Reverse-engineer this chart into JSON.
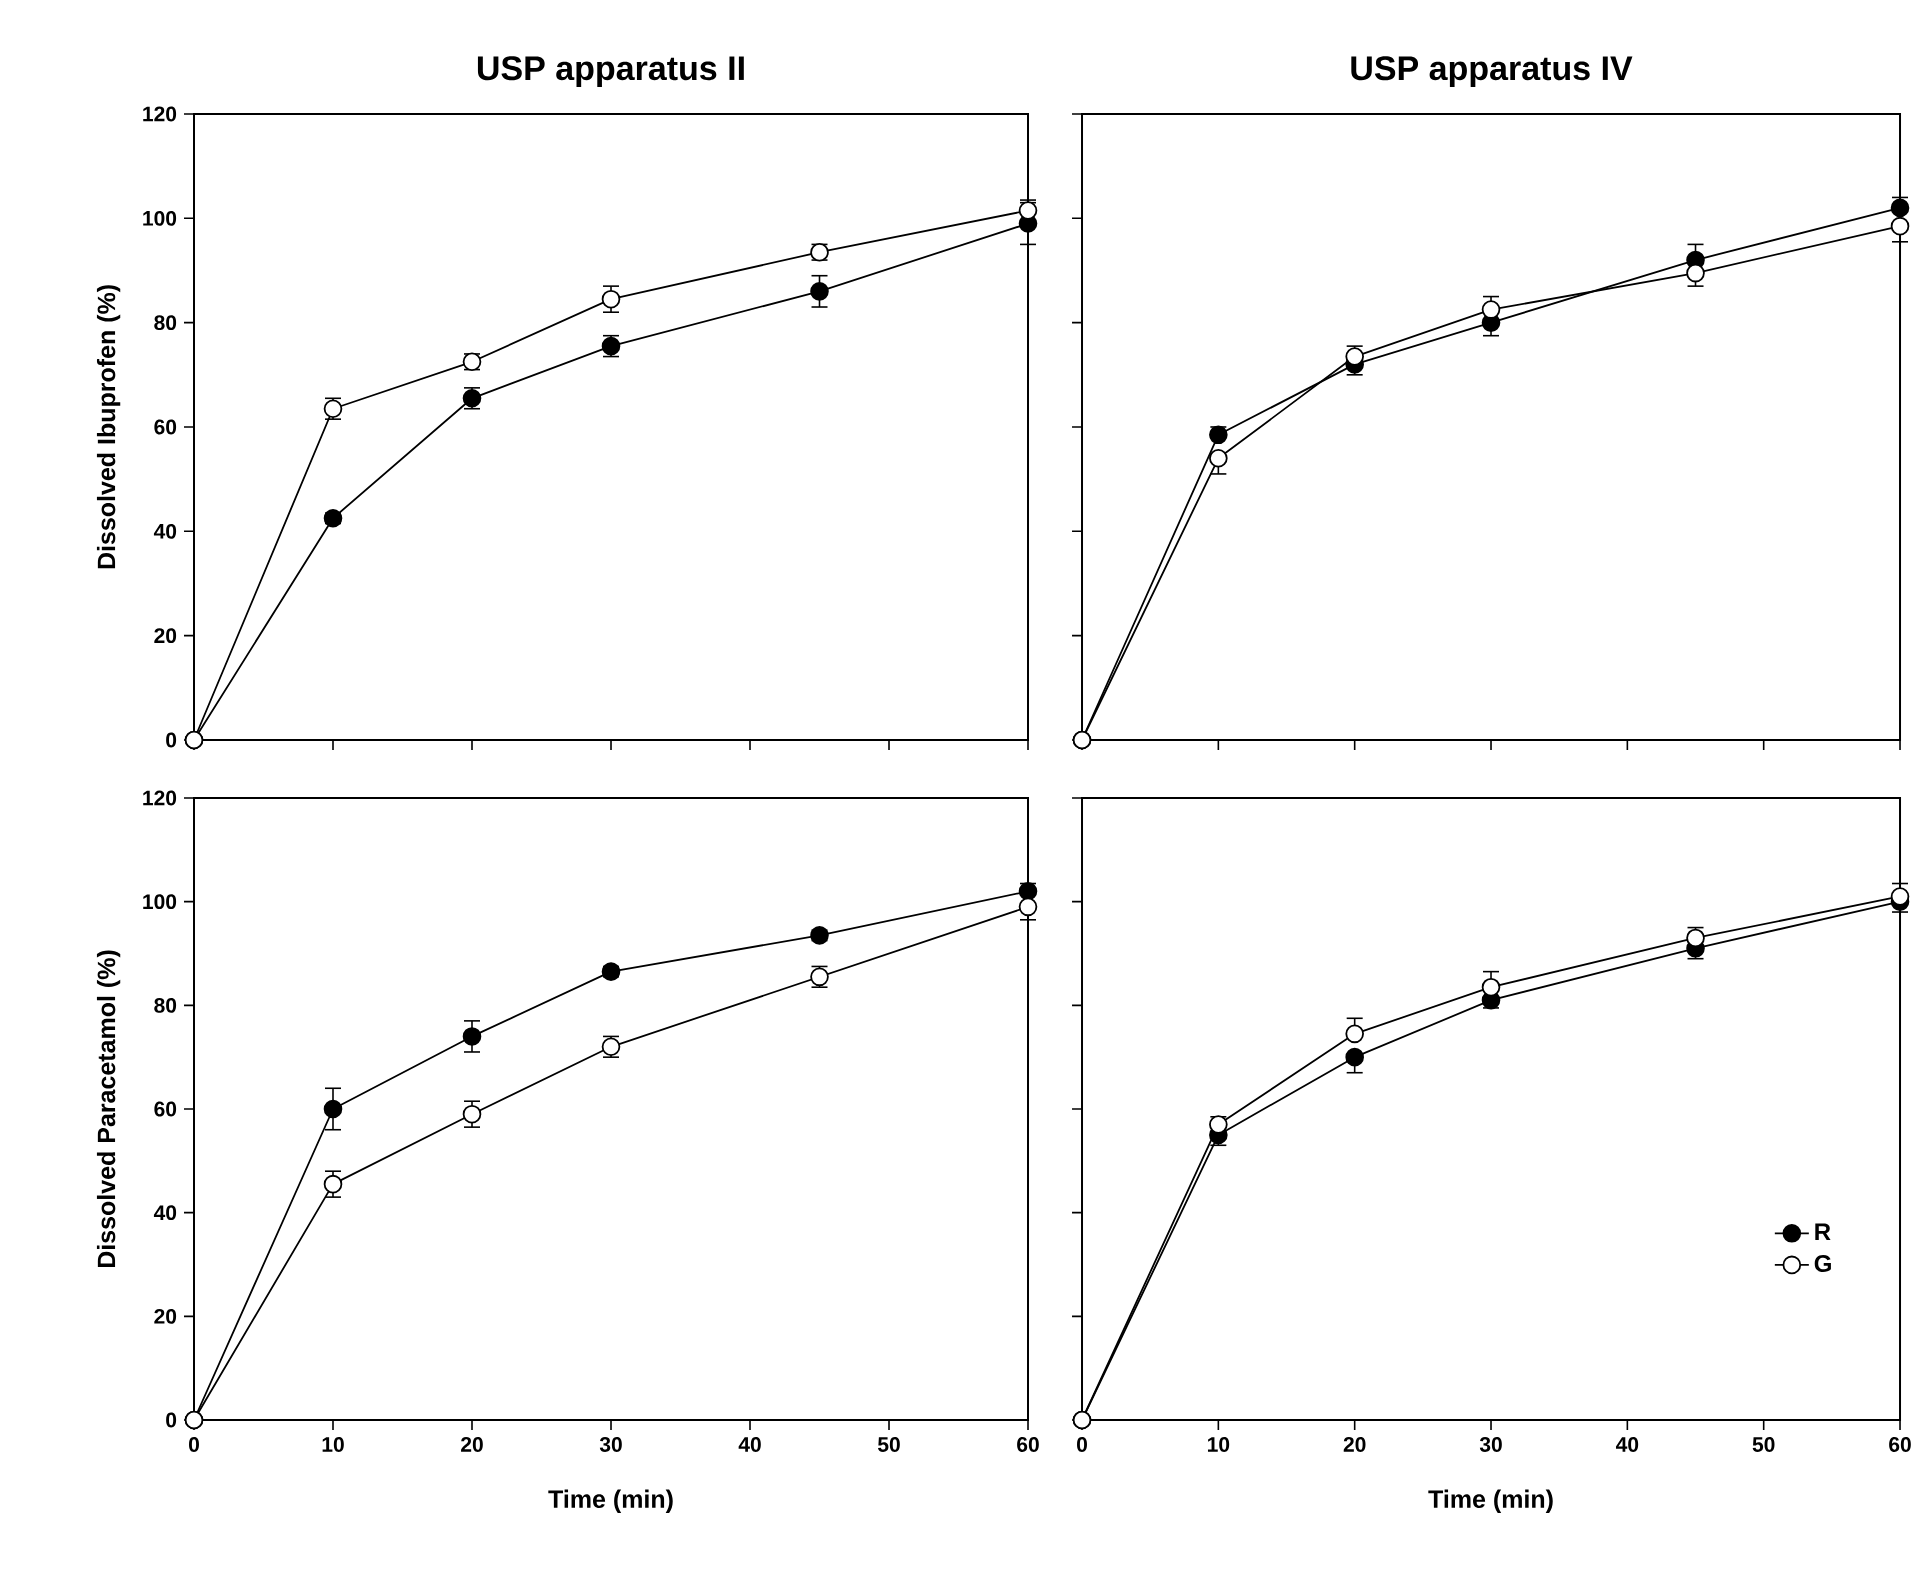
{
  "chart_data": [
    {
      "type": "line",
      "title": "USP apparatus II",
      "ylabel": "Dissolved Ibuprofen (%)",
      "x": [
        0,
        10,
        20,
        30,
        45,
        60
      ],
      "xlim": [
        0,
        60
      ],
      "xticks": [
        0,
        10,
        20,
        30,
        40,
        50,
        60
      ],
      "ylim": [
        0,
        120
      ],
      "yticks": [
        0,
        20,
        40,
        60,
        80,
        100,
        120
      ],
      "tick_labels": "y",
      "marker": "circle",
      "grid": false,
      "series": [
        {
          "color": "#000000",
          "values": [
            0,
            42.5,
            65.5,
            75.5,
            86,
            99
          ],
          "errors": [
            null,
            1,
            2,
            2,
            3,
            4
          ]
        },
        {
          "color": "#ffffff",
          "values": [
            0,
            63.5,
            72.5,
            84.5,
            93.5,
            101.5
          ],
          "errors": [
            null,
            2,
            1.5,
            2.5,
            1.5,
            2
          ]
        }
      ]
    },
    {
      "type": "line",
      "title": "USP apparatus IV",
      "x": [
        0,
        10,
        20,
        30,
        45,
        60
      ],
      "xlim": [
        0,
        60
      ],
      "xticks": [
        0,
        10,
        20,
        30,
        40,
        50,
        60
      ],
      "ylim": [
        0,
        120
      ],
      "yticks": [
        0,
        20,
        40,
        60,
        80,
        100,
        120
      ],
      "tick_labels": false,
      "marker": "circle",
      "grid": false,
      "series": [
        {
          "color": "#000000",
          "values": [
            0,
            58.5,
            72,
            80,
            92,
            102
          ],
          "errors": [
            null,
            [
              58.5,
              60
            ],
            [
              70,
              72
            ],
            [
              77.5,
              80
            ],
            [
              92,
              95
            ],
            [
              102,
              104
            ]
          ]
        },
        {
          "color": "#ffffff",
          "values": [
            0,
            54,
            73.5,
            82.5,
            89.5,
            98.5
          ],
          "errors": [
            null,
            [
              51,
              54
            ],
            [
              73.5,
              75.5
            ],
            [
              82.5,
              85
            ],
            [
              87,
              89.5
            ],
            [
              95.5,
              98.5
            ]
          ]
        }
      ]
    },
    {
      "type": "line",
      "ylabel": "Dissolved Paracetamol (%)",
      "xlabel": "Time (min)",
      "x": [
        0,
        10,
        20,
        30,
        45,
        60
      ],
      "xlim": [
        0,
        60
      ],
      "xticks": [
        0,
        10,
        20,
        30,
        40,
        50,
        60
      ],
      "ylim": [
        0,
        120
      ],
      "yticks": [
        0,
        20,
        40,
        60,
        80,
        100,
        120
      ],
      "marker": "circle",
      "grid": false,
      "series": [
        {
          "color": "#000000",
          "values": [
            0,
            60,
            74,
            86.5,
            93.5,
            102
          ],
          "errors": [
            null,
            4,
            3,
            1,
            1,
            [
              102,
              103.5
            ]
          ]
        },
        {
          "color": "#ffffff",
          "values": [
            0,
            45.5,
            59,
            72,
            85.5,
            99
          ],
          "errors": [
            null,
            2.5,
            2.5,
            2,
            2,
            [
              96.5,
              99
            ]
          ]
        }
      ]
    },
    {
      "type": "line",
      "xlabel": "Time (min)",
      "x": [
        0,
        10,
        20,
        30,
        45,
        60
      ],
      "xlim": [
        0,
        60
      ],
      "xticks": [
        0,
        10,
        20,
        30,
        40,
        50,
        60
      ],
      "ylim": [
        0,
        120
      ],
      "yticks": [
        0,
        20,
        40,
        60,
        80,
        100,
        120
      ],
      "tick_labels": "x",
      "marker": "circle",
      "grid": false,
      "legend": "bottom right",
      "series": [
        {
          "name": "R",
          "color": "#000000",
          "values": [
            0,
            55,
            70,
            81,
            91,
            100
          ],
          "errors": [
            null,
            [
              53,
              55
            ],
            [
              67,
              70
            ],
            [
              79.5,
              81
            ],
            [
              89,
              91
            ],
            [
              98,
              100
            ]
          ]
        },
        {
          "name": "G",
          "color": "#ffffff",
          "values": [
            0,
            57,
            74.5,
            83.5,
            93,
            101
          ],
          "errors": [
            null,
            [
              57,
              58.5
            ],
            [
              74.5,
              77.5
            ],
            [
              83.5,
              86.5
            ],
            [
              93,
              95
            ],
            [
              101,
              103.5
            ]
          ]
        }
      ]
    }
  ]
}
